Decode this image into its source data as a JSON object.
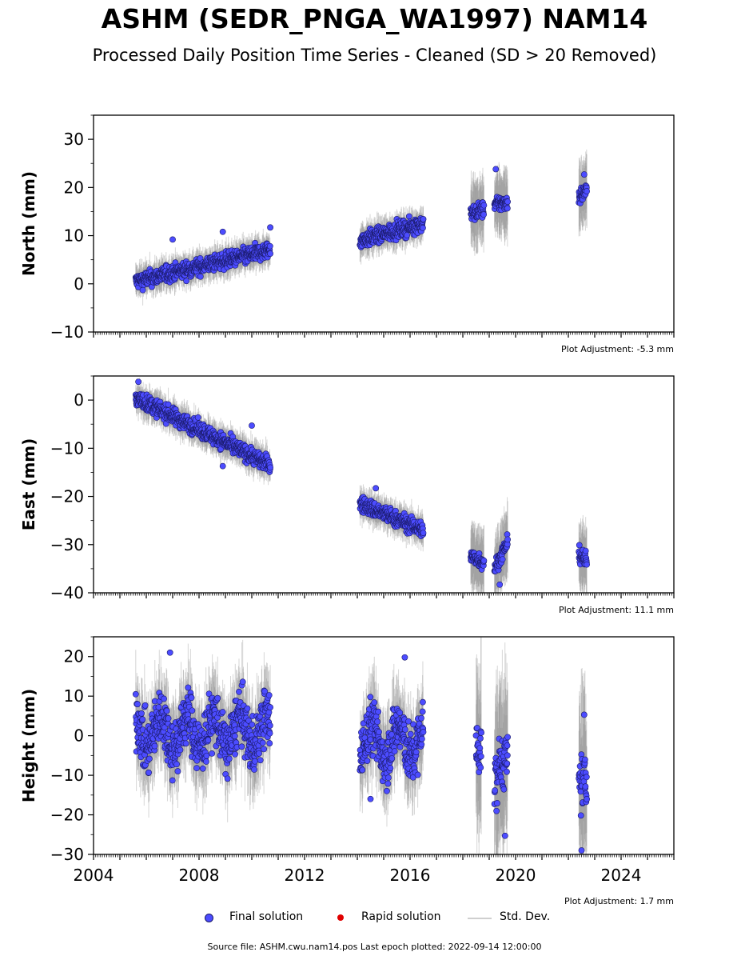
{
  "title": "ASHM (SEDR_PNGA_WA1997) NAM14",
  "subtitle": "Processed Daily Position Time Series - Cleaned (SD > 20 Removed)",
  "legend": {
    "final": "Final solution",
    "rapid": "Rapid solution",
    "std": "Std. Dev."
  },
  "source": "Source file: ASHM.cwu.nam14.pos  Last epoch plotted: 2022-09-14 12:00:00",
  "colors": {
    "final_fill": "#4c4cff",
    "final_edge": "#1a1a6a",
    "rapid": "#e00000",
    "std_dev": "#b0b0b0"
  },
  "chart_data": [
    {
      "type": "scatter",
      "panel": "north",
      "ylabel": "North (mm)",
      "ylim": [
        -10,
        35
      ],
      "yticks": [
        -10,
        0,
        10,
        20,
        30
      ],
      "xlim": [
        2004,
        2026
      ],
      "xticks": [
        2004,
        2008,
        2012,
        2016,
        2020,
        2024
      ],
      "adjustment": "Plot Adjustment: -5.3 mm",
      "trend": [
        {
          "x0": 2005.6,
          "y0": 0.5,
          "x1": 2010.7,
          "y1": 7.0
        },
        {
          "x0": 2014.1,
          "y0": 9.0,
          "x1": 2016.5,
          "y1": 12.5
        },
        {
          "x0": 2018.3,
          "y0": 14.5,
          "x1": 2018.8,
          "y1": 15.5
        },
        {
          "x0": 2019.2,
          "y0": 16.5,
          "x1": 2019.7,
          "y1": 17.0
        },
        {
          "x0": 2022.4,
          "y0": 18.0,
          "x1": 2022.7,
          "y1": 19.5
        }
      ],
      "outliers": [
        {
          "x": 2007.0,
          "y": 9.2
        },
        {
          "x": 2008.9,
          "y": 10.8
        },
        {
          "x": 2010.7,
          "y": 11.7
        },
        {
          "x": 2019.25,
          "y": 23.8
        },
        {
          "x": 2022.6,
          "y": 22.7
        }
      ]
    },
    {
      "type": "scatter",
      "panel": "east",
      "ylabel": "East (mm)",
      "ylim": [
        -40,
        5
      ],
      "yticks": [
        -40,
        -30,
        -20,
        -10,
        0
      ],
      "xlim": [
        2004,
        2026
      ],
      "xticks": [
        2004,
        2008,
        2012,
        2016,
        2020,
        2024
      ],
      "adjustment": "Plot Adjustment: 11.1 mm",
      "trend": [
        {
          "x0": 2005.6,
          "y0": 0.5,
          "x1": 2010.7,
          "y1": -13.5
        },
        {
          "x0": 2014.1,
          "y0": -21.5,
          "x1": 2016.5,
          "y1": -27.0
        },
        {
          "x0": 2018.3,
          "y0": -32.5,
          "x1": 2018.8,
          "y1": -33.5
        },
        {
          "x0": 2019.2,
          "y0": -35.0,
          "x1": 2019.7,
          "y1": -29.5
        },
        {
          "x0": 2022.4,
          "y0": -32.0,
          "x1": 2022.7,
          "y1": -33.5
        }
      ],
      "outliers": [
        {
          "x": 2005.7,
          "y": 3.8
        },
        {
          "x": 2010.0,
          "y": -5.3
        },
        {
          "x": 2014.7,
          "y": -18.3
        },
        {
          "x": 2008.9,
          "y": -13.7
        },
        {
          "x": 2019.4,
          "y": -38.3
        }
      ]
    },
    {
      "type": "scatter",
      "panel": "height",
      "ylabel": "Height (mm)",
      "ylim": [
        -30,
        25
      ],
      "yticks": [
        -30,
        -20,
        -10,
        0,
        10,
        20
      ],
      "xlim": [
        2004,
        2026
      ],
      "xticks": [
        2004,
        2008,
        2012,
        2016,
        2020,
        2024
      ],
      "xticklabels": [
        "2004",
        "2008",
        "2012",
        "2016",
        "2020",
        "2024"
      ],
      "adjustment": "Plot Adjustment: 1.7 mm",
      "trend": [
        {
          "x0": 2005.6,
          "y0": 1.0,
          "x1": 2010.7,
          "y1": 1.0
        },
        {
          "x0": 2014.1,
          "y0": -1.5,
          "x1": 2016.5,
          "y1": -1.5
        },
        {
          "x0": 2018.5,
          "y0": -7.0,
          "x1": 2018.7,
          "y1": -7.0
        },
        {
          "x0": 2019.2,
          "y0": -10.0,
          "x1": 2019.7,
          "y1": -10.0
        },
        {
          "x0": 2022.4,
          "y0": -15.0,
          "x1": 2022.7,
          "y1": -15.0
        }
      ],
      "outliers": [
        {
          "x": 2006.9,
          "y": 21.0
        },
        {
          "x": 2015.8,
          "y": 19.8
        },
        {
          "x": 2019.6,
          "y": -25.3
        },
        {
          "x": 2022.5,
          "y": -29.0
        },
        {
          "x": 2022.6,
          "y": 5.3
        },
        {
          "x": 2014.5,
          "y": -16.0
        }
      ]
    }
  ]
}
